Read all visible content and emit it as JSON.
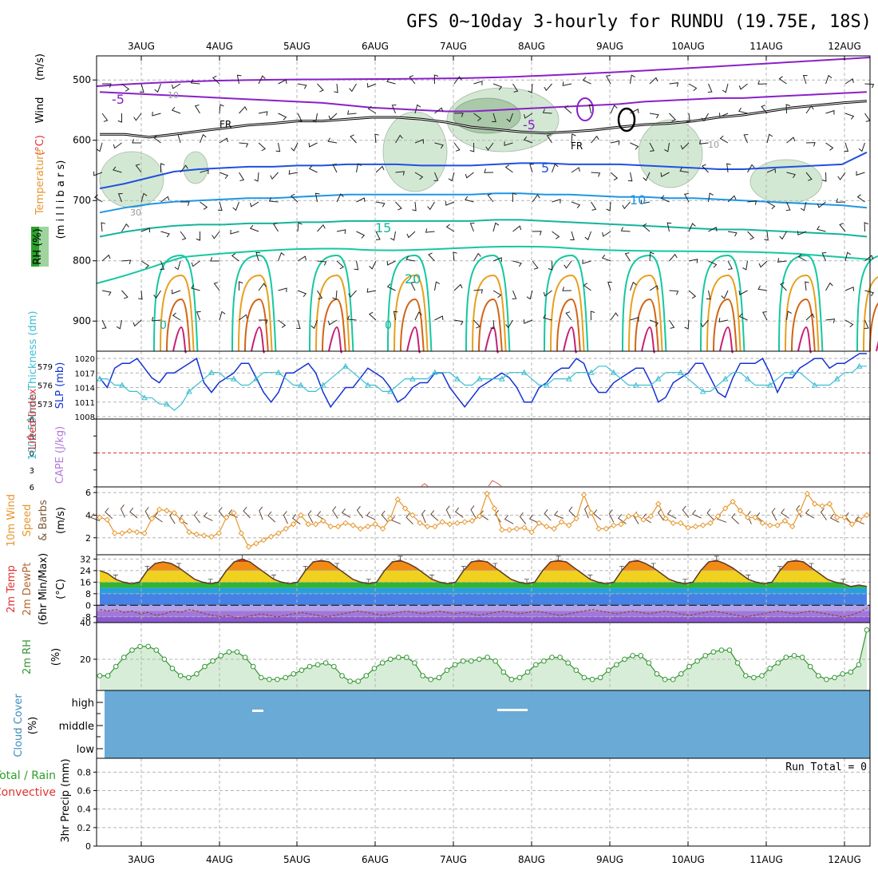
{
  "title": "GFS 0~10day 3-hourly for RUNDU (19.75E, 18S)",
  "dates": [
    "3AUG",
    "4AUG",
    "5AUG",
    "6AUG",
    "7AUG",
    "8AUG",
    "9AUG",
    "10AUG",
    "11AUG",
    "12AUG"
  ],
  "colors": {
    "frame": "#000000",
    "grid": "#b4b4b4",
    "rh_shade": "#cfe6cf",
    "rh_shade_dark": "#a9c9a9",
    "wind_barb": "#202020",
    "temp_neg5": "#8a20c8",
    "temp_0": "#000000",
    "temp_5": "#2050e0",
    "temp_10": "#1e96e6",
    "temp_15": "#14b49c",
    "temp_20": "#14c8a0",
    "temp_25": "#e6a01e",
    "temp_30": "#d26414",
    "temp_35": "#c81e78",
    "slp_line": "#1432d2",
    "thickness_line": "#3cbed2",
    "li_zero": "#e03232",
    "wind10_line": "#e6962d",
    "barb10": "#644632",
    "temp2m_line": "#5a3a28",
    "dew_line": "#964628",
    "rh2m_line": "#329632",
    "rh2m_fill": "#c8e6c8",
    "cloud_fill": "#6aaad6",
    "precip_axis": "#000000"
  },
  "chart_data": [
    {
      "id": "upper-air",
      "type": "contour",
      "ylabel_wind": "Wind",
      "ylabel_wind_unit": "(m/s)",
      "ylabel_temp": "Temperature",
      "ylabel_temp_unit": "(°C)",
      "ylabel_rh": "RH (%)",
      "ylabel_pressure": "(m i l l i b a r s)",
      "yticks": [
        "500",
        "600",
        "700",
        "800",
        "900"
      ],
      "ylim": [
        460,
        950
      ],
      "contour_labels": [
        "-5",
        "-5",
        "FR",
        "FR",
        "5",
        "10",
        "15",
        "20",
        "0",
        "0",
        "10",
        "30",
        "10"
      ],
      "isotherms": [
        {
          "label": "-5",
          "values_mb": [
            520,
            522,
            524,
            526,
            528,
            530,
            532,
            534,
            536,
            538,
            542,
            546,
            548,
            550,
            552,
            552,
            550,
            548,
            546,
            544,
            542,
            540,
            536,
            534,
            532,
            530,
            530,
            528,
            526,
            524,
            522,
            520
          ]
        },
        {
          "label": "0",
          "values_mb": [
            590,
            590,
            595,
            590,
            585,
            580,
            575,
            572,
            568,
            568,
            565,
            562,
            562,
            565,
            570,
            578,
            582,
            586,
            588,
            586,
            583,
            578,
            574,
            572,
            568,
            562,
            558,
            552,
            546,
            542,
            538,
            535
          ]
        },
        {
          "label": "5",
          "values_mb": [
            680,
            672,
            662,
            652,
            648,
            646,
            644,
            644,
            642,
            642,
            640,
            640,
            640,
            642,
            642,
            642,
            640,
            638,
            638,
            640,
            640,
            640,
            642,
            644,
            646,
            648,
            648,
            646,
            644,
            642,
            640,
            620
          ]
        },
        {
          "label": "10",
          "values_mb": [
            720,
            712,
            706,
            702,
            700,
            698,
            696,
            696,
            694,
            692,
            690,
            690,
            690,
            690,
            690,
            690,
            688,
            688,
            690,
            690,
            692,
            694,
            694,
            696,
            696,
            698,
            700,
            702,
            704,
            706,
            708,
            712
          ]
        },
        {
          "label": "15",
          "values_mb": [
            760,
            752,
            746,
            742,
            740,
            740,
            738,
            738,
            736,
            736,
            734,
            734,
            734,
            734,
            734,
            734,
            732,
            732,
            734,
            736,
            738,
            740,
            742,
            744,
            746,
            748,
            748,
            750,
            752,
            754,
            756,
            760
          ]
        }
      ]
    },
    {
      "id": "slp-thickness",
      "type": "line",
      "ylabel_left": "1000-500mb Thickness (dm)",
      "ylabel_right": "SLP (mb)",
      "left_ticks": [
        "579",
        "576",
        "573"
      ],
      "right_ticks": [
        "1020",
        "1017",
        "1014",
        "1011",
        "1008"
      ],
      "ylim_slp": [
        1008,
        1021
      ],
      "ylim_thickness": [
        571,
        581
      ],
      "series": [
        {
          "name": "SLP (mb)",
          "values": [
            1016,
            1014,
            1018,
            1019,
            1019,
            1020,
            1018,
            1016,
            1015,
            1017,
            1017,
            1018,
            1019,
            1020,
            1015,
            1013,
            1015,
            1016,
            1017,
            1019,
            1019,
            1016,
            1013,
            1011,
            1013,
            1017,
            1017,
            1018,
            1019,
            1017,
            1013,
            1010,
            1012,
            1014,
            1014,
            1016,
            1018,
            1017,
            1016,
            1014,
            1011,
            1012,
            1014,
            1015,
            1015,
            1017,
            1017,
            1014,
            1012,
            1010,
            1012,
            1014,
            1015,
            1016,
            1017,
            1016,
            1014,
            1011,
            1011,
            1014,
            1015,
            1017,
            1018,
            1018,
            1020,
            1019,
            1015,
            1013,
            1013,
            1015,
            1016,
            1017,
            1018,
            1018,
            1015,
            1011,
            1012,
            1015,
            1016,
            1017,
            1019,
            1019,
            1016,
            1013,
            1012,
            1016,
            1019,
            1019,
            1019,
            1020,
            1017,
            1013,
            1016,
            1016,
            1018,
            1019,
            1020,
            1020,
            1018,
            1019,
            1019,
            1020,
            1021,
            1021
          ]
        },
        {
          "name": "Thickness (dm)",
          "values": [
            577,
            577,
            576,
            576,
            575,
            575,
            574,
            574,
            573,
            573,
            572,
            573,
            575,
            576,
            577,
            578,
            578,
            577,
            577,
            576,
            576,
            577,
            578,
            578,
            578,
            577,
            576,
            576,
            575,
            575,
            576,
            577,
            578,
            579,
            578,
            577,
            576,
            576,
            575,
            575,
            576,
            577,
            577,
            577,
            577,
            578,
            578,
            578,
            577,
            576,
            576,
            577,
            577,
            577,
            577,
            578,
            578,
            578,
            577,
            576,
            576,
            577,
            577,
            577,
            578,
            578,
            578,
            579,
            579,
            578,
            577,
            576,
            576,
            576,
            576,
            577,
            578,
            578,
            578,
            577,
            576,
            575,
            575,
            576,
            577,
            578,
            578,
            577,
            576,
            576,
            576,
            577,
            578,
            578,
            578,
            577,
            576,
            576,
            576,
            577,
            578,
            578,
            579,
            579
          ]
        }
      ]
    },
    {
      "id": "cape-li",
      "type": "line",
      "ylabel_left": "Lifted Index",
      "ylabel_right": "CAPE (J/kg)",
      "left_ticks": [
        "-6",
        "-3",
        "0",
        "3",
        "6"
      ],
      "ylim": [
        6,
        -6
      ],
      "series": [
        {
          "name": "Lifted Index",
          "values": [
            0
          ]
        }
      ]
    },
    {
      "id": "wind10m",
      "type": "line",
      "ylabel_left": "10m Wind",
      "ylabel_mid": "Speed",
      "ylabel_right": "& Barbs",
      "ylabel_unit": "(m/s)",
      "ticks": [
        "6",
        "4",
        "2"
      ],
      "ylim": [
        0.5,
        6.5
      ],
      "series": [
        {
          "name": "10m Wind Speed",
          "values": [
            3.8,
            3.6,
            2.4,
            2.4,
            2.6,
            2.5,
            2.4,
            3.7,
            4.5,
            4.4,
            4.2,
            3.5,
            2.5,
            2.3,
            2.2,
            2.1,
            2.4,
            3.8,
            4.2,
            2.4,
            1.2,
            1.5,
            1.8,
            2.1,
            2.4,
            2.8,
            3.2,
            4.0,
            3.2,
            3.2,
            3.5,
            3.0,
            3.0,
            3.3,
            3.1,
            2.8,
            3.0,
            3.2,
            2.8,
            3.7,
            5.4,
            4.6,
            4.0,
            3.3,
            3.0,
            3.0,
            3.4,
            3.2,
            3.3,
            3.4,
            3.5,
            3.9,
            5.9,
            4.6,
            2.7,
            2.7,
            2.8,
            2.9,
            2.5,
            3.3,
            3.0,
            2.8,
            3.4,
            3.1,
            3.7,
            5.8,
            4.2,
            2.8,
            2.8,
            3.1,
            3.2,
            3.9,
            4.0,
            3.6,
            3.9,
            5.0,
            3.7,
            3.3,
            3.3,
            2.9,
            3.0,
            3.1,
            3.3,
            3.9,
            4.6,
            5.2,
            4.4,
            3.8,
            3.8,
            3.3,
            3.1,
            3.1,
            3.5,
            3.0,
            4.3,
            5.9,
            5.0,
            4.8,
            5.0,
            3.8,
            3.8,
            3.2,
            3.6,
            4.0
          ]
        }
      ]
    },
    {
      "id": "temp2m",
      "type": "area",
      "ylabel_a": "2m Temp",
      "ylabel_b": "2m DewPt",
      "ylabel_c": "(6hr Min/Max)",
      "ylabel_unit": "(°C)",
      "ticks": [
        "32",
        "24",
        "16",
        "8",
        "0",
        "-8"
      ],
      "ylim": [
        -12,
        35
      ],
      "series": [
        {
          "name": "2m Temp",
          "values": [
            24,
            22,
            18,
            16,
            15,
            16,
            24,
            29,
            30,
            29,
            26,
            22,
            18,
            16,
            15,
            16,
            24,
            30,
            32,
            30,
            26,
            22,
            18,
            16,
            15,
            16,
            24,
            30,
            31,
            30,
            26,
            22,
            18,
            16,
            15,
            16,
            24,
            30,
            31,
            29,
            26,
            22,
            18,
            16,
            15,
            16,
            24,
            30,
            31,
            30,
            26,
            22,
            18,
            16,
            15,
            16,
            24,
            30,
            31,
            30,
            26,
            22,
            18,
            16,
            15,
            16,
            24,
            30,
            31,
            29,
            26,
            22,
            18,
            16,
            15,
            16,
            24,
            30,
            31,
            29,
            26,
            22,
            18,
            16,
            15,
            16,
            24,
            30,
            31,
            30,
            26,
            22,
            18,
            16,
            15,
            13,
            14,
            13
          ]
        },
        {
          "name": "2m DewPt",
          "values": [
            -3,
            -4,
            -3,
            -5,
            -4,
            -6,
            -5,
            -7,
            -6,
            -4,
            -5,
            -3,
            -4,
            -6,
            -7,
            -8,
            -7,
            -9,
            -8,
            -7,
            -6,
            -7,
            -8,
            -7,
            -6,
            -5,
            -6,
            -7,
            -8,
            -7,
            -6,
            -5,
            -4,
            -5,
            -6,
            -7,
            -6,
            -5,
            -4,
            -5,
            -6,
            -5,
            -4,
            -5,
            -6,
            -5,
            -6,
            -7,
            -6,
            -5,
            -4,
            -5,
            -6,
            -5,
            -4,
            -5,
            -6,
            -7,
            -6,
            -5,
            -4,
            -3,
            -4,
            -5,
            -6,
            -5,
            -4,
            -5,
            -6,
            -5,
            -4,
            -5,
            -6,
            -7,
            -6,
            -5,
            -4,
            -5,
            -6,
            -7,
            -8,
            -7,
            -6,
            -5,
            -4,
            -5,
            -6,
            -5,
            -4,
            -5,
            -6,
            -7,
            -8,
            -7,
            -5,
            -2
          ]
        }
      ]
    },
    {
      "id": "rh2m",
      "type": "area",
      "ylabel": "2m RH",
      "ylabel_unit": "(%)",
      "ticks": [
        "40",
        "20"
      ],
      "ylim": [
        3,
        40
      ],
      "series": [
        {
          "name": "2m RH",
          "values": [
            11,
            11,
            16,
            21,
            25,
            27,
            27,
            25,
            20,
            15,
            11,
            10,
            12,
            16,
            19,
            22,
            24,
            24,
            21,
            16,
            10,
            9,
            9,
            10,
            12,
            14,
            16,
            17,
            18,
            16,
            11,
            8,
            8,
            11,
            15,
            18,
            20,
            21,
            21,
            18,
            11,
            9,
            10,
            14,
            17,
            19,
            19,
            20,
            21,
            19,
            13,
            9,
            10,
            13,
            17,
            19,
            21,
            21,
            18,
            14,
            10,
            9,
            10,
            14,
            17,
            20,
            22,
            22,
            18,
            12,
            9,
            9,
            12,
            16,
            19,
            22,
            24,
            25,
            25,
            18,
            11,
            10,
            11,
            15,
            18,
            21,
            22,
            21,
            16,
            11,
            9,
            10,
            12,
            13,
            17,
            36
          ]
        }
      ]
    },
    {
      "id": "cloud",
      "type": "heatmap",
      "ylabel": "Cloud Cover",
      "ylabel_unit": "(%)",
      "levels": [
        "high",
        "middle",
        "low"
      ]
    },
    {
      "id": "precip",
      "type": "bar",
      "ylabel_a": "Total / Rain",
      "ylabel_b": "Convective",
      "ylabel_c": "3hr Precip (mm)",
      "ticks": [
        "0.8",
        "0.6",
        "0.4",
        "0.2",
        "0"
      ],
      "ylim": [
        0,
        0.95
      ],
      "run_total": "Run Total = 0",
      "values": []
    }
  ]
}
